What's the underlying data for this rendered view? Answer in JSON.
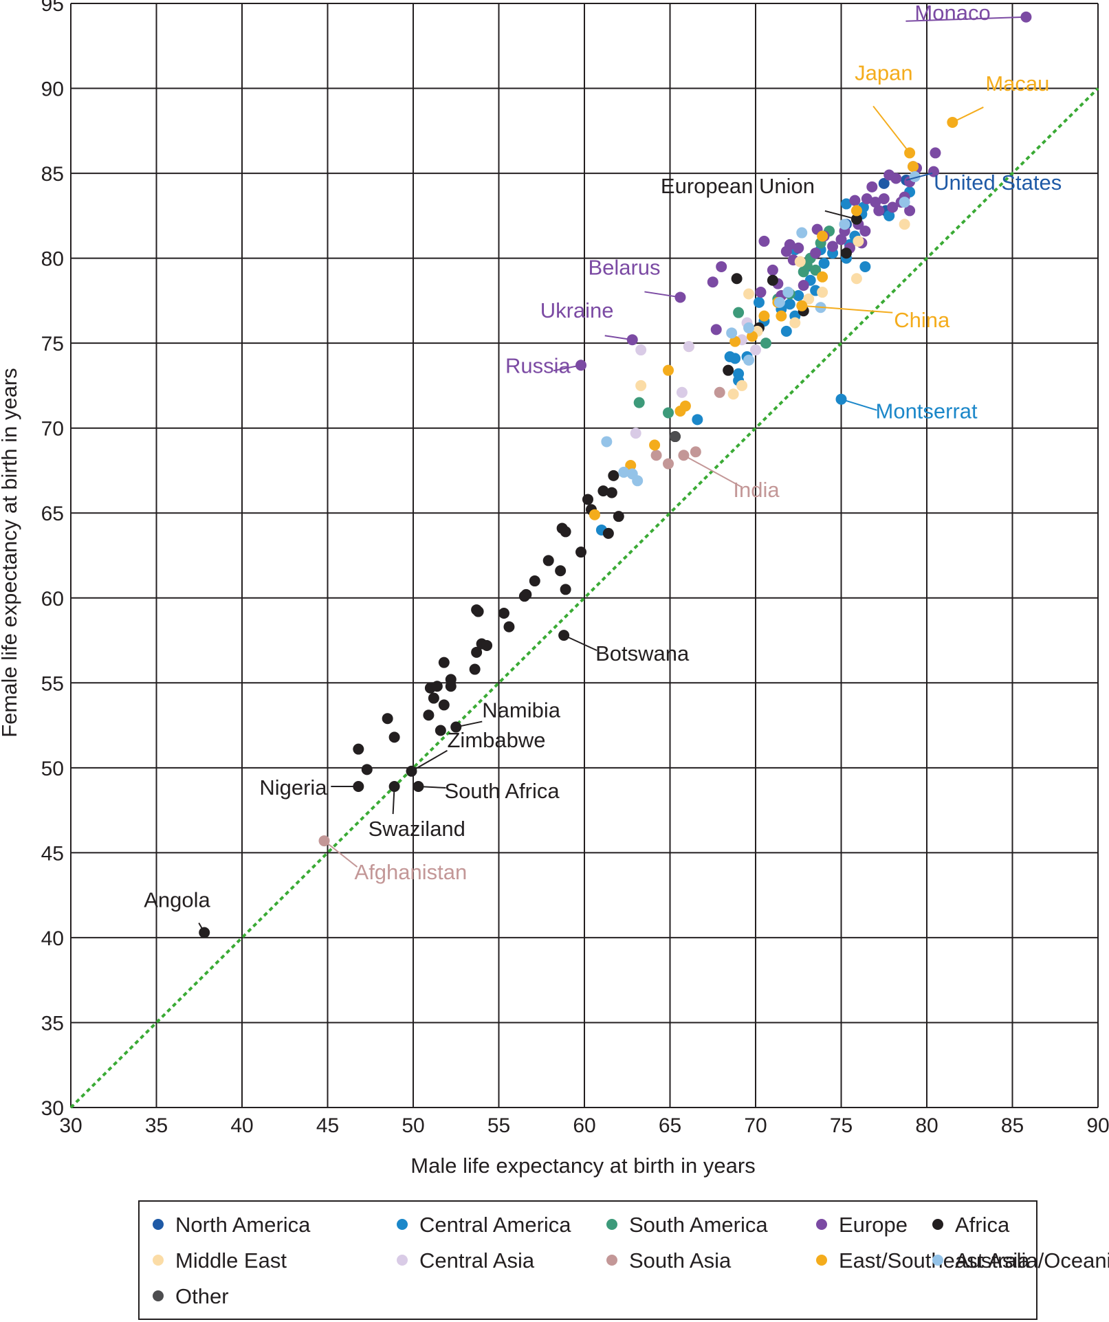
{
  "chart_data": {
    "type": "scatter",
    "title": "",
    "xlabel": "Male life expectancy at birth in years",
    "ylabel": "Female life expectancy at birth in years",
    "xlim": [
      30,
      90
    ],
    "ylim": [
      30,
      95
    ],
    "xticks": [
      30,
      35,
      40,
      45,
      50,
      55,
      60,
      65,
      70,
      75,
      80,
      85,
      90
    ],
    "yticks": [
      30,
      35,
      40,
      45,
      50,
      55,
      60,
      65,
      70,
      75,
      80,
      85,
      90,
      95
    ],
    "grid": true,
    "reference_line": {
      "style": "dotted",
      "color": "#3aaa35",
      "from": [
        30,
        30
      ],
      "to": [
        90,
        90
      ]
    },
    "legend_position": "bottom",
    "colors": {
      "North America": "#1f5aa6",
      "Central America": "#1b87c9",
      "South America": "#3d9a7a",
      "Europe": "#7b4aa3",
      "Africa": "#231f20",
      "Middle East": "#fbdca6",
      "Central Asia": "#d9cbe6",
      "South Asia": "#c39797",
      "East/Southeast Asia": "#f4ac1c",
      "Australia/Oceania": "#94c3e8",
      "Other": "#4d4d4f"
    },
    "legend": [
      "North America",
      "Central America",
      "South America",
      "Europe",
      "Africa",
      "Middle East",
      "Central Asia",
      "South Asia",
      "East/Southeast Asia",
      "Australia/Oceania",
      "Other"
    ],
    "series": [
      {
        "name": "North America",
        "points": [
          [
            78.8,
            84.6
          ],
          [
            75.3,
            82.0
          ],
          [
            77.5,
            84.4
          ],
          [
            77.6,
            82.8
          ]
        ]
      },
      {
        "name": "Central America",
        "points": [
          [
            75.0,
            71.7
          ],
          [
            61.0,
            64.0
          ],
          [
            66.6,
            70.5
          ],
          [
            68.8,
            74.1
          ],
          [
            69.0,
            73.2
          ],
          [
            69.0,
            72.8
          ],
          [
            68.5,
            74.2
          ],
          [
            69.5,
            74.2
          ],
          [
            70.2,
            77.4
          ],
          [
            70.5,
            76.3
          ],
          [
            71.5,
            77.0
          ],
          [
            71.8,
            75.7
          ],
          [
            72.0,
            77.3
          ],
          [
            72.3,
            76.6
          ],
          [
            72.5,
            77.8
          ],
          [
            72.3,
            80.5
          ],
          [
            73.0,
            79.5
          ],
          [
            73.2,
            78.7
          ],
          [
            73.5,
            78.1
          ],
          [
            73.8,
            80.5
          ],
          [
            74.0,
            79.7
          ],
          [
            74.5,
            80.3
          ],
          [
            75.3,
            80.0
          ],
          [
            75.5,
            80.8
          ],
          [
            75.3,
            83.2
          ],
          [
            75.8,
            81.3
          ],
          [
            76.2,
            82.6
          ],
          [
            76.3,
            83.0
          ],
          [
            76.4,
            79.5
          ],
          [
            77.8,
            82.5
          ],
          [
            79.0,
            83.9
          ]
        ]
      },
      {
        "name": "South America",
        "points": [
          [
            63.2,
            71.5
          ],
          [
            64.9,
            70.9
          ],
          [
            69.0,
            76.8
          ],
          [
            70.6,
            75.0
          ],
          [
            71.3,
            77.6
          ],
          [
            72.0,
            77.9
          ],
          [
            72.8,
            79.2
          ],
          [
            73.0,
            79.6
          ],
          [
            73.2,
            80.0
          ],
          [
            73.5,
            79.3
          ],
          [
            73.8,
            80.9
          ],
          [
            74.3,
            81.6
          ]
        ]
      },
      {
        "name": "Europe",
        "points": [
          [
            85.8,
            94.2
          ],
          [
            65.6,
            77.7
          ],
          [
            62.8,
            75.2
          ],
          [
            59.8,
            73.7
          ],
          [
            67.5,
            78.6
          ],
          [
            68.0,
            79.5
          ],
          [
            67.7,
            75.8
          ],
          [
            70.5,
            81.0
          ],
          [
            70.3,
            78.0
          ],
          [
            71.0,
            79.3
          ],
          [
            71.3,
            78.5
          ],
          [
            71.5,
            77.8
          ],
          [
            71.8,
            80.4
          ],
          [
            72.0,
            80.8
          ],
          [
            72.2,
            79.9
          ],
          [
            72.5,
            80.6
          ],
          [
            72.8,
            78.4
          ],
          [
            73.5,
            80.3
          ],
          [
            73.6,
            81.7
          ],
          [
            74.0,
            81.3
          ],
          [
            74.5,
            80.7
          ],
          [
            75.0,
            81.1
          ],
          [
            75.2,
            81.6
          ],
          [
            75.5,
            80.6
          ],
          [
            75.8,
            83.4
          ],
          [
            76.0,
            82.0
          ],
          [
            76.2,
            80.9
          ],
          [
            76.4,
            81.6
          ],
          [
            76.5,
            83.5
          ],
          [
            76.8,
            84.2
          ],
          [
            77.0,
            83.3
          ],
          [
            77.2,
            82.8
          ],
          [
            77.5,
            83.5
          ],
          [
            77.8,
            84.9
          ],
          [
            78.0,
            83.0
          ],
          [
            78.2,
            84.7
          ],
          [
            78.5,
            83.3
          ],
          [
            78.7,
            83.6
          ],
          [
            79.0,
            84.5
          ],
          [
            79.2,
            85.4
          ],
          [
            79.4,
            85.3
          ],
          [
            79.0,
            82.8
          ],
          [
            80.4,
            85.1
          ],
          [
            80.5,
            86.2
          ]
        ]
      },
      {
        "name": "Africa",
        "points": [
          [
            37.8,
            40.3
          ],
          [
            46.8,
            48.9
          ],
          [
            46.8,
            51.1
          ],
          [
            47.3,
            49.9
          ],
          [
            48.5,
            52.9
          ],
          [
            48.9,
            51.8
          ],
          [
            48.9,
            48.9
          ],
          [
            49.9,
            49.8
          ],
          [
            50.3,
            48.9
          ],
          [
            50.9,
            53.1
          ],
          [
            51.0,
            54.7
          ],
          [
            51.2,
            54.1
          ],
          [
            51.4,
            54.8
          ],
          [
            51.6,
            52.2
          ],
          [
            51.8,
            56.2
          ],
          [
            51.8,
            53.7
          ],
          [
            52.2,
            54.8
          ],
          [
            52.2,
            55.2
          ],
          [
            52.5,
            52.4
          ],
          [
            53.6,
            55.8
          ],
          [
            53.7,
            56.8
          ],
          [
            53.7,
            59.3
          ],
          [
            53.8,
            59.2
          ],
          [
            54.0,
            57.3
          ],
          [
            54.3,
            57.2
          ],
          [
            55.3,
            59.1
          ],
          [
            55.6,
            58.3
          ],
          [
            56.5,
            60.1
          ],
          [
            56.6,
            60.2
          ],
          [
            57.1,
            61.0
          ],
          [
            57.9,
            62.2
          ],
          [
            58.6,
            61.6
          ],
          [
            58.7,
            64.1
          ],
          [
            58.9,
            63.9
          ],
          [
            58.9,
            60.5
          ],
          [
            58.8,
            57.8
          ],
          [
            59.8,
            62.7
          ],
          [
            60.2,
            65.8
          ],
          [
            60.4,
            65.2
          ],
          [
            61.1,
            66.3
          ],
          [
            61.4,
            63.8
          ],
          [
            61.6,
            66.2
          ],
          [
            61.7,
            67.2
          ],
          [
            62.0,
            64.8
          ],
          [
            65.3,
            69.5
          ],
          [
            68.4,
            73.4
          ],
          [
            68.9,
            78.8
          ],
          [
            70.2,
            75.9
          ],
          [
            71.0,
            78.7
          ],
          [
            72.8,
            76.9
          ],
          [
            75.3,
            80.3
          ],
          [
            75.9,
            82.3
          ]
        ]
      },
      {
        "name": "Middle East",
        "points": [
          [
            63.3,
            72.5
          ],
          [
            66.1,
            74.8
          ],
          [
            68.7,
            72.0
          ],
          [
            69.2,
            72.5
          ],
          [
            69.6,
            77.9
          ],
          [
            70.1,
            75.7
          ],
          [
            72.3,
            76.2
          ],
          [
            72.6,
            79.8
          ],
          [
            73.1,
            77.6
          ],
          [
            73.9,
            78.0
          ],
          [
            75.9,
            78.8
          ],
          [
            76.0,
            81.0
          ],
          [
            78.7,
            82.0
          ]
        ]
      },
      {
        "name": "Central Asia",
        "points": [
          [
            63.0,
            69.7
          ],
          [
            63.3,
            74.6
          ],
          [
            65.7,
            72.1
          ],
          [
            66.1,
            74.8
          ],
          [
            69.2,
            75.2
          ],
          [
            69.5,
            76.2
          ],
          [
            70.0,
            74.6
          ]
        ]
      },
      {
        "name": "South Asia",
        "points": [
          [
            44.8,
            45.7
          ],
          [
            64.2,
            68.4
          ],
          [
            64.9,
            67.9
          ],
          [
            65.8,
            68.4
          ],
          [
            66.5,
            68.6
          ],
          [
            67.9,
            72.1
          ]
        ]
      },
      {
        "name": "East/Southeast Asia",
        "points": [
          [
            79.0,
            86.2
          ],
          [
            81.5,
            88.0
          ],
          [
            64.9,
            73.4
          ],
          [
            60.6,
            64.9
          ],
          [
            62.7,
            67.8
          ],
          [
            64.1,
            69.0
          ],
          [
            65.6,
            71.0
          ],
          [
            65.9,
            71.3
          ],
          [
            68.8,
            75.1
          ],
          [
            69.8,
            75.4
          ],
          [
            70.5,
            76.6
          ],
          [
            71.3,
            77.4
          ],
          [
            71.5,
            76.6
          ],
          [
            72.7,
            77.2
          ],
          [
            73.9,
            78.9
          ],
          [
            73.9,
            81.3
          ],
          [
            75.9,
            82.8
          ],
          [
            79.2,
            85.4
          ]
        ]
      },
      {
        "name": "Australia/Oceania",
        "points": [
          [
            61.3,
            69.2
          ],
          [
            62.3,
            67.4
          ],
          [
            62.8,
            67.3
          ],
          [
            63.1,
            66.9
          ],
          [
            68.6,
            75.6
          ],
          [
            69.6,
            74.0
          ],
          [
            69.6,
            75.9
          ],
          [
            71.4,
            77.4
          ],
          [
            71.9,
            78.0
          ],
          [
            72.7,
            81.5
          ],
          [
            73.8,
            77.1
          ],
          [
            75.2,
            82.0
          ],
          [
            78.7,
            83.3
          ],
          [
            79.3,
            84.8
          ]
        ]
      },
      {
        "name": "Other",
        "points": [
          [
            65.3,
            69.5
          ]
        ]
      }
    ],
    "annotations": [
      {
        "text": "Monaco",
        "color": "#7b4aa3",
        "target": [
          85.8,
          94.2
        ]
      },
      {
        "text": "Japan",
        "color": "#f4ac1c",
        "target": [
          79.0,
          86.2
        ]
      },
      {
        "text": "Macau",
        "color": "#f4ac1c",
        "target": [
          81.5,
          88.0
        ]
      },
      {
        "text": "European Union",
        "color": "#231f20",
        "target": [
          75.9,
          82.3
        ]
      },
      {
        "text": "United States",
        "color": "#1f5aa6",
        "target": [
          78.8,
          84.6
        ]
      },
      {
        "text": "Belarus",
        "color": "#7b4aa3",
        "target": [
          65.6,
          77.7
        ]
      },
      {
        "text": "Ukraine",
        "color": "#7b4aa3",
        "target": [
          62.8,
          75.2
        ]
      },
      {
        "text": "Russia",
        "color": "#7b4aa3",
        "target": [
          59.8,
          73.7
        ]
      },
      {
        "text": "China",
        "color": "#f4ac1c",
        "target": [
          72.7,
          77.2
        ]
      },
      {
        "text": "Montserrat",
        "color": "#1b87c9",
        "target": [
          75.0,
          71.7
        ]
      },
      {
        "text": "India",
        "color": "#c39797",
        "target": [
          65.8,
          68.4
        ]
      },
      {
        "text": "Botswana",
        "color": "#231f20",
        "target": [
          58.8,
          57.8
        ]
      },
      {
        "text": "Namibia",
        "color": "#231f20",
        "target": [
          52.5,
          52.4
        ]
      },
      {
        "text": "Zimbabwe",
        "color": "#231f20",
        "target": [
          49.9,
          49.8
        ]
      },
      {
        "text": "Nigeria",
        "color": "#231f20",
        "target": [
          46.8,
          48.9
        ]
      },
      {
        "text": "South Africa",
        "color": "#231f20",
        "target": [
          50.3,
          48.9
        ]
      },
      {
        "text": "Swaziland",
        "color": "#231f20",
        "target": [
          48.9,
          48.9
        ]
      },
      {
        "text": "Afghanistan",
        "color": "#c39797",
        "target": [
          44.8,
          45.7
        ]
      },
      {
        "text": "Angola",
        "color": "#231f20",
        "target": [
          37.8,
          40.3
        ]
      }
    ]
  }
}
